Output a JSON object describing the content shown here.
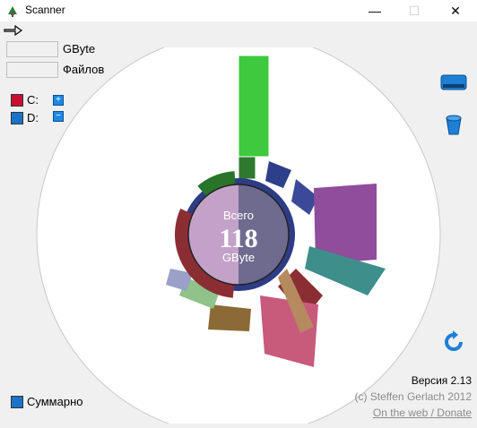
{
  "window": {
    "title": "Scanner",
    "minimize_glyph": "—",
    "maximize_glyph": "☐",
    "close_glyph": "✕"
  },
  "toolbar": {
    "back_icon": "arrow-right-icon"
  },
  "stats": {
    "gbyte_value": "",
    "gbyte_label": "GByte",
    "files_value": "",
    "files_label": "Файлов"
  },
  "drives": [
    {
      "label": "C:",
      "color": "#c8102e",
      "action": "+"
    },
    {
      "label": "D:",
      "color": "#1a73c8",
      "action": "−"
    }
  ],
  "chart": {
    "center_caption": "Всего",
    "center_value": "118",
    "center_unit": "GByte"
  },
  "side_buttons": [
    "drive-icon",
    "bucket-icon",
    "refresh-icon"
  ],
  "summary_label": "Суммарно",
  "footer": {
    "version": "Версия 2.13",
    "copyright": "(c) Steffen Gerlach 2012",
    "link": "On the web / Donate"
  },
  "colors": {
    "accent": "#1e88e5",
    "window_bg": "#f0f0f0"
  }
}
